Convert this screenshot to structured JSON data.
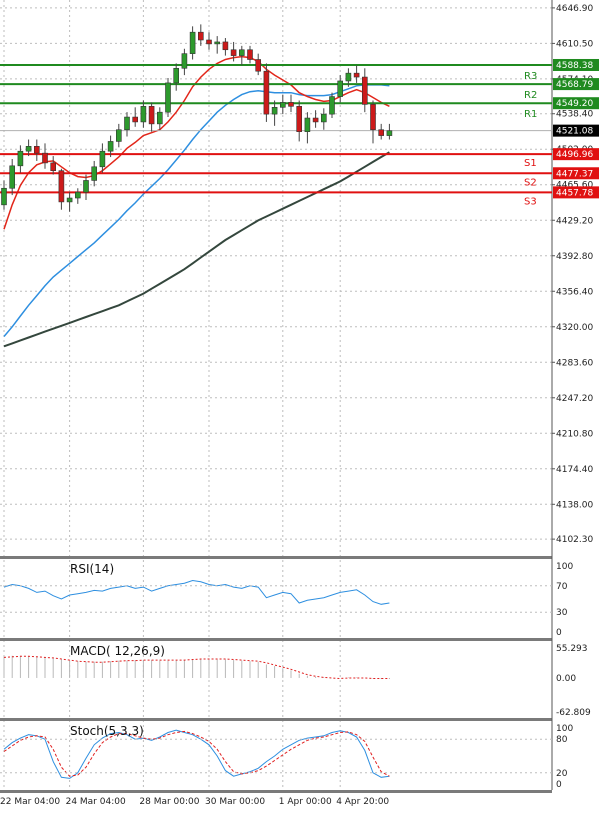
{
  "chart_data": {
    "type": "candlestick",
    "price_panel": {
      "ylim": [
        4085,
        4655
      ],
      "y_ticks": [
        "4646.90",
        "4610.50",
        "4574.10",
        "4538.40",
        "4502.00",
        "4465.60",
        "4429.20",
        "4392.80",
        "4356.40",
        "4320.00",
        "4283.60",
        "4247.20",
        "4210.80",
        "4174.40",
        "4138.00",
        "4102.30"
      ],
      "y_tick_values": [
        4646.9,
        4610.5,
        4574.1,
        4538.4,
        4502.0,
        4465.6,
        4429.2,
        4392.8,
        4356.4,
        4320.0,
        4283.6,
        4247.2,
        4210.8,
        4174.4,
        4138.0,
        4102.3
      ],
      "current_price": {
        "label": "4521.08",
        "value": 4521.08
      },
      "resistance": [
        {
          "name": "R1",
          "label": "4549.20",
          "value": 4549.2
        },
        {
          "name": "R2",
          "label": "4568.79",
          "value": 4568.79
        },
        {
          "name": "R3",
          "label": "4588.38",
          "value": 4588.38
        }
      ],
      "support": [
        {
          "name": "S1",
          "label": "4496.96",
          "value": 4496.96
        },
        {
          "name": "S2",
          "label": "4477.37",
          "value": 4477.37
        },
        {
          "name": "S3",
          "label": "4457.78",
          "value": 4457.78
        }
      ],
      "candles": [
        [
          4445,
          4470,
          4440,
          4462
        ],
        [
          4462,
          4492,
          4455,
          4485
        ],
        [
          4485,
          4506,
          4478,
          4500
        ],
        [
          4500,
          4512,
          4495,
          4505
        ],
        [
          4505,
          4512,
          4490,
          4498
        ],
        [
          4498,
          4508,
          4482,
          4488
        ],
        [
          4488,
          4495,
          4476,
          4480
        ],
        [
          4480,
          4482,
          4440,
          4448
        ],
        [
          4448,
          4458,
          4438,
          4452
        ],
        [
          4452,
          4462,
          4446,
          4458
        ],
        [
          4458,
          4476,
          4450,
          4470
        ],
        [
          4470,
          4490,
          4464,
          4484
        ],
        [
          4484,
          4508,
          4478,
          4500
        ],
        [
          4500,
          4516,
          4494,
          4510
        ],
        [
          4510,
          4528,
          4504,
          4522
        ],
        [
          4522,
          4540,
          4515,
          4535
        ],
        [
          4535,
          4545,
          4525,
          4530
        ],
        [
          4530,
          4552,
          4524,
          4546
        ],
        [
          4546,
          4550,
          4520,
          4528
        ],
        [
          4528,
          4545,
          4522,
          4540
        ],
        [
          4540,
          4575,
          4535,
          4570
        ],
        [
          4570,
          4590,
          4562,
          4585
        ],
        [
          4585,
          4605,
          4578,
          4600
        ],
        [
          4600,
          4628,
          4594,
          4622
        ],
        [
          4622,
          4630,
          4608,
          4614
        ],
        [
          4614,
          4622,
          4604,
          4610
        ],
        [
          4610,
          4618,
          4600,
          4612
        ],
        [
          4612,
          4616,
          4598,
          4604
        ],
        [
          4604,
          4612,
          4592,
          4598
        ],
        [
          4598,
          4608,
          4588,
          4604
        ],
        [
          4604,
          4608,
          4590,
          4594
        ],
        [
          4594,
          4600,
          4578,
          4582
        ],
        [
          4582,
          4590,
          4530,
          4538
        ],
        [
          4538,
          4552,
          4526,
          4545
        ],
        [
          4545,
          4558,
          4538,
          4550
        ],
        [
          4550,
          4558,
          4540,
          4546
        ],
        [
          4546,
          4552,
          4510,
          4520
        ],
        [
          4520,
          4540,
          4508,
          4534
        ],
        [
          4534,
          4542,
          4524,
          4530
        ],
        [
          4530,
          4544,
          4522,
          4538
        ],
        [
          4538,
          4560,
          4534,
          4556
        ],
        [
          4556,
          4578,
          4550,
          4572
        ],
        [
          4572,
          4585,
          4566,
          4580
        ],
        [
          4580,
          4588,
          4570,
          4576
        ],
        [
          4576,
          4585,
          4540,
          4548
        ],
        [
          4548,
          4552,
          4508,
          4522
        ],
        [
          4522,
          4528,
          4512,
          4516
        ],
        [
          4516,
          4528,
          4512,
          4521
        ]
      ],
      "ema_red": [
        4420,
        4445,
        4465,
        4478,
        4486,
        4489,
        4490,
        4484,
        4478,
        4474,
        4473,
        4475,
        4480,
        4487,
        4494,
        4503,
        4509,
        4516,
        4519,
        4522,
        4530,
        4540,
        4552,
        4566,
        4576,
        4584,
        4590,
        4594,
        4596,
        4597,
        4596,
        4592,
        4584,
        4578,
        4573,
        4568,
        4560,
        4556,
        4553,
        4551,
        4552,
        4556,
        4560,
        4563,
        4560,
        4555,
        4550,
        4546
      ],
      "ema_blue": [
        4310,
        4320,
        4331,
        4342,
        4352,
        4362,
        4371,
        4378,
        4385,
        4392,
        4399,
        4406,
        4414,
        4422,
        4430,
        4439,
        4447,
        4456,
        4464,
        4472,
        4481,
        4491,
        4501,
        4512,
        4522,
        4531,
        4540,
        4547,
        4553,
        4558,
        4561,
        4562,
        4561,
        4560,
        4560,
        4560,
        4558,
        4557,
        4557,
        4557,
        4558,
        4561,
        4564,
        4567,
        4568,
        4568,
        4568,
        4567
      ],
      "ema_dark": [
        4300,
        4303,
        4306,
        4309,
        4312,
        4315,
        4318,
        4321,
        4324,
        4327,
        4330,
        4333,
        4336,
        4339,
        4342,
        4346,
        4350,
        4354,
        4359,
        4364,
        4369,
        4374,
        4379,
        4385,
        4391,
        4397,
        4403,
        4409,
        4414,
        4419,
        4424,
        4429,
        4433,
        4437,
        4441,
        4445,
        4449,
        4453,
        4457,
        4461,
        4465,
        4469,
        4474,
        4479,
        4484,
        4489,
        4494,
        4499
      ]
    },
    "rsi_panel": {
      "title": "RSI(14)",
      "y_ticks": [
        "100",
        "70",
        "30",
        "0"
      ],
      "ylim": [
        0,
        100
      ],
      "values": [
        68,
        72,
        70,
        66,
        60,
        62,
        55,
        50,
        56,
        58,
        60,
        63,
        62,
        66,
        68,
        70,
        66,
        68,
        62,
        66,
        70,
        72,
        74,
        78,
        76,
        72,
        70,
        72,
        68,
        66,
        70,
        68,
        52,
        56,
        60,
        58,
        44,
        48,
        50,
        52,
        56,
        60,
        62,
        64,
        56,
        46,
        42,
        44
      ]
    },
    "macd_panel": {
      "title": "MACD( 12,26,9)",
      "y_ticks": [
        "55.293",
        "0.00",
        "-62.809"
      ],
      "ylim": [
        -62.809,
        55.293
      ],
      "histogram": [
        40,
        41,
        41,
        40,
        39,
        38,
        36,
        34,
        32,
        31,
        30,
        30,
        30,
        31,
        32,
        32,
        33,
        33,
        33,
        32,
        32,
        32,
        33,
        34,
        34,
        34,
        34,
        34,
        33,
        32,
        31,
        30,
        25,
        22,
        18,
        14,
        8,
        4,
        2,
        1,
        0,
        0,
        1,
        1,
        0,
        -1,
        -2,
        -2
      ],
      "signal": [
        38,
        39,
        40,
        40,
        39,
        38,
        37,
        35,
        33,
        31,
        30,
        29,
        29,
        30,
        31,
        32,
        32,
        33,
        33,
        33,
        33,
        33,
        33,
        34,
        35,
        35,
        35,
        35,
        34,
        33,
        32,
        31,
        28,
        24,
        20,
        16,
        11,
        6,
        3,
        1,
        0,
        -1,
        0,
        0,
        0,
        -1,
        -1,
        -1
      ]
    },
    "stoch_panel": {
      "title": "Stoch(5,3,3)",
      "y_ticks": [
        "100",
        "80",
        "20",
        "0"
      ],
      "ylim": [
        0,
        100
      ],
      "main": [
        62,
        74,
        82,
        88,
        86,
        80,
        40,
        12,
        10,
        20,
        46,
        70,
        82,
        90,
        92,
        88,
        80,
        82,
        78,
        84,
        92,
        96,
        92,
        88,
        80,
        70,
        50,
        24,
        14,
        18,
        22,
        28,
        40,
        50,
        62,
        70,
        78,
        82,
        84,
        86,
        92,
        95,
        92,
        84,
        60,
        20,
        12,
        14
      ],
      "signal": [
        58,
        68,
        78,
        84,
        86,
        84,
        62,
        30,
        14,
        16,
        30,
        54,
        74,
        84,
        90,
        90,
        86,
        82,
        80,
        82,
        88,
        92,
        94,
        90,
        84,
        76,
        62,
        40,
        22,
        18,
        20,
        24,
        32,
        42,
        52,
        62,
        70,
        78,
        82,
        84,
        88,
        92,
        93,
        88,
        76,
        48,
        22,
        14
      ]
    },
    "x_labels": [
      "22 Mar 04:00",
      "24 Mar 04:00",
      "28 Mar 00:00",
      "30 Mar 00:00",
      "1 Apr 00:00",
      "4 Apr 20:00"
    ],
    "x_label_index": [
      0,
      8,
      17,
      25,
      34,
      41
    ],
    "colors": {
      "bull": "#2d9a2d",
      "bear": "#cc1a1a",
      "ema_red": "#e2261a",
      "ema_blue": "#2e8fe0",
      "ema_dark": "#34473d",
      "support": "#e01010",
      "resistance": "#1f8a1f",
      "rsi": "#2e8fe0",
      "macd_hist": "#b8b8b8",
      "macd_signal": "#e02020",
      "stoch_main": "#2e8fe0",
      "stoch_signal": "#e02020",
      "grid": "#bdbdbd"
    }
  }
}
